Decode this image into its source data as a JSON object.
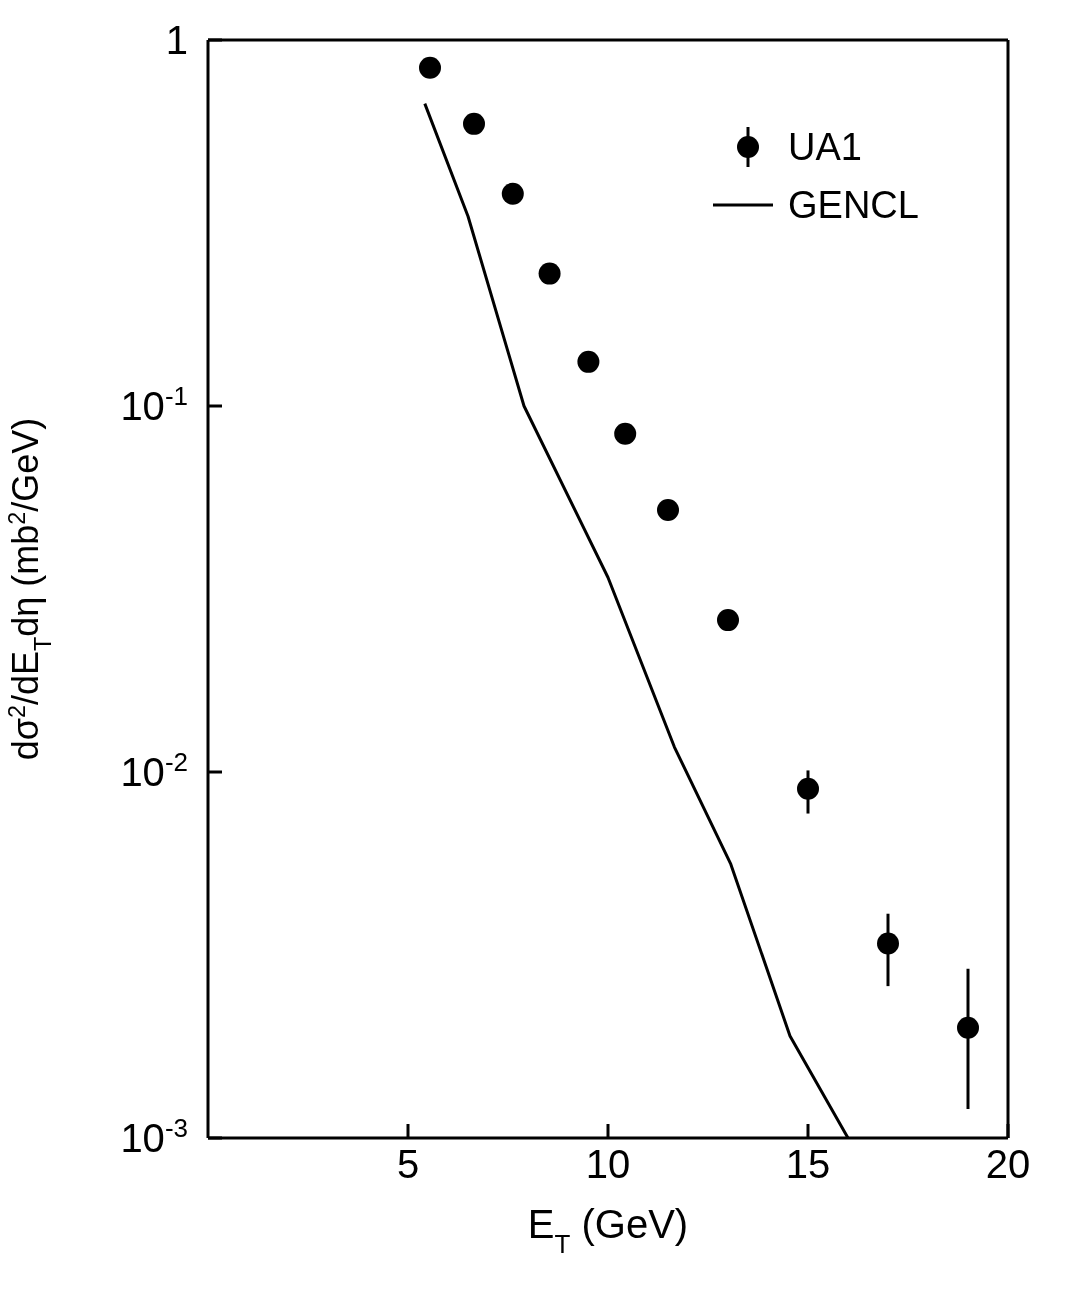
{
  "chart_data": {
    "type": "scatter",
    "xlabel": "E$_{T}$ (GeV)",
    "ylabel": "dσ$^{2}$/dE$_{T}$dη (mb$^{2}$/GeV)",
    "log": "y",
    "xlim": [
      0,
      20
    ],
    "xticks": [
      5,
      10,
      15,
      20
    ],
    "ylim": [
      0.001,
      1
    ],
    "yticks": [
      {
        "value": 0.001,
        "label": "10$^{-3}$"
      },
      {
        "value": 0.01,
        "label": "10$^{-2}$"
      },
      {
        "value": 0.1,
        "label": "10$^{-1}$"
      },
      1
    ],
    "grid": false,
    "legend": "top right",
    "marker": "circle",
    "line_style": "solid",
    "series": [
      {
        "name": "UA1",
        "color": "#000000",
        "x": [
          5.55,
          6.65,
          7.62,
          8.54,
          9.51,
          10.43,
          11.5,
          13.0,
          15.0,
          17.0,
          19.0
        ],
        "values": [
          0.84,
          0.59,
          0.38,
          0.23,
          0.132,
          0.084,
          0.052,
          0.026,
          0.009,
          0.0034,
          0.002
        ],
        "errors": [
          null,
          null,
          null,
          null,
          null,
          null,
          null,
          null,
          [
            0.0077,
            0.0101
          ],
          [
            0.0026,
            0.0041
          ],
          [
            0.0012,
            0.0029
          ]
        ]
      },
      {
        "name": "GENCL",
        "type": "line",
        "marker": "none",
        "color": "#000000",
        "x": [
          5.42,
          6.5,
          7.9,
          10.0,
          11.66,
          13.07,
          14.55,
          16.0
        ],
        "values": [
          0.67,
          0.33,
          0.1,
          0.034,
          0.0117,
          0.0056,
          0.0019,
          0.001
        ]
      }
    ]
  }
}
